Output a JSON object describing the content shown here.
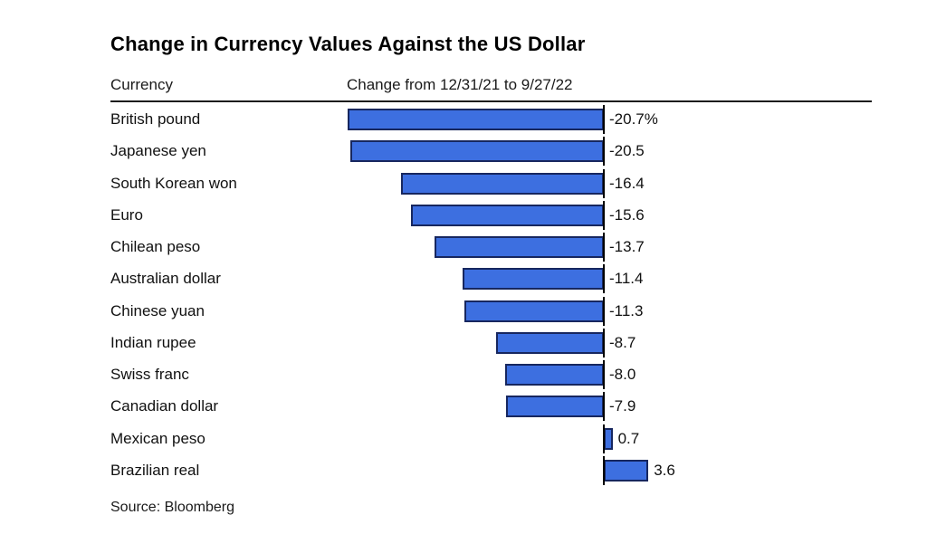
{
  "header": {
    "title": "Change in Currency Values Against the US Dollar"
  },
  "table": {
    "col_header_currency": "Currency",
    "col_header_change": "Change from 12/31/21 to 9/27/22"
  },
  "footer": {
    "source": "Source: Bloomberg"
  },
  "chart_data": {
    "type": "bar",
    "orientation": "horizontal",
    "title": "Change in Currency Values Against the US Dollar",
    "xlabel": "Change from 12/31/21 to 9/27/22 (%)",
    "ylabel": "Currency",
    "categories": [
      "British pound",
      "Japanese yen",
      "South Korean won",
      "Euro",
      "Chilean peso",
      "Australian dollar",
      "Chinese yuan",
      "Indian rupee",
      "Swiss franc",
      "Canadian dollar",
      "Mexican peso",
      "Brazilian real"
    ],
    "values": [
      -20.7,
      -20.5,
      -16.4,
      -15.6,
      -13.7,
      -11.4,
      -11.3,
      -8.7,
      -8.0,
      -7.9,
      0.7,
      3.6
    ],
    "value_labels": [
      "-20.7%",
      "-20.5",
      "-16.4",
      "-15.6",
      "-13.7",
      "-11.4",
      "-11.3",
      "-8.7",
      "-8.0",
      "-7.9",
      "0.7",
      "3.6"
    ],
    "xlim": [
      -20.7,
      3.6
    ],
    "grid": false,
    "legend": false,
    "bar_color": "#3D6FE0",
    "bar_border_color": "#17275F",
    "baseline_color": "#000000",
    "source": "Source: Bloomberg"
  }
}
